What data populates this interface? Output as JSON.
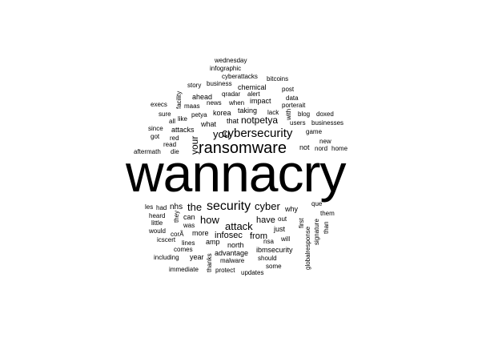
{
  "word_cloud": {
    "words": [
      {
        "id": "wannacry",
        "text": "wannacry"
      },
      {
        "id": "ransomware",
        "text": "ransomware"
      },
      {
        "id": "cybersecurity",
        "text": "cybersecurity"
      },
      {
        "id": "security",
        "text": "security"
      },
      {
        "id": "notpetya",
        "text": "notpetya"
      },
      {
        "id": "you",
        "text": "you"
      },
      {
        "id": "your",
        "text": "your"
      },
      {
        "id": "cyber",
        "text": "cyber"
      },
      {
        "id": "the",
        "text": "the"
      },
      {
        "id": "attack",
        "text": "attack"
      },
      {
        "id": "how",
        "text": "how"
      },
      {
        "id": "have",
        "text": "have"
      },
      {
        "id": "infosec",
        "text": "infosec"
      },
      {
        "id": "from",
        "text": "from"
      },
      {
        "id": "nhs",
        "text": "nhs"
      },
      {
        "id": "wednesday",
        "text": "wednesday"
      },
      {
        "id": "infographic",
        "text": "infographic"
      },
      {
        "id": "cyberattacks",
        "text": "cyberattacks"
      },
      {
        "id": "bitcoins",
        "text": "bitcoins"
      },
      {
        "id": "story",
        "text": "story"
      },
      {
        "id": "business",
        "text": "business"
      },
      {
        "id": "chemical",
        "text": "chemical"
      },
      {
        "id": "post",
        "text": "post"
      },
      {
        "id": "facility",
        "text": "facility"
      },
      {
        "id": "qradar",
        "text": "qradar"
      },
      {
        "id": "alert",
        "text": "alert"
      },
      {
        "id": "data",
        "text": "data"
      },
      {
        "id": "ahead",
        "text": "ahead"
      },
      {
        "id": "impact",
        "text": "impact"
      },
      {
        "id": "execs",
        "text": "execs"
      },
      {
        "id": "maas",
        "text": "maas"
      },
      {
        "id": "news",
        "text": "news"
      },
      {
        "id": "when",
        "text": "when"
      },
      {
        "id": "porterait",
        "text": "porterait"
      },
      {
        "id": "sure",
        "text": "sure"
      },
      {
        "id": "petya",
        "text": "petya"
      },
      {
        "id": "korea",
        "text": "korea"
      },
      {
        "id": "taking",
        "text": "taking"
      },
      {
        "id": "lack",
        "text": "lack"
      },
      {
        "id": "with",
        "text": "with"
      },
      {
        "id": "blog",
        "text": "blog"
      },
      {
        "id": "doxed",
        "text": "doxed"
      },
      {
        "id": "all",
        "text": "all"
      },
      {
        "id": "like",
        "text": "like"
      },
      {
        "id": "that",
        "text": "that"
      },
      {
        "id": "users",
        "text": "users"
      },
      {
        "id": "businesses",
        "text": "businesses"
      },
      {
        "id": "since",
        "text": "since"
      },
      {
        "id": "attacks",
        "text": "attacks"
      },
      {
        "id": "what",
        "text": "what"
      },
      {
        "id": "game",
        "text": "game"
      },
      {
        "id": "got",
        "text": "got"
      },
      {
        "id": "red",
        "text": "red"
      },
      {
        "id": "new",
        "text": "new"
      },
      {
        "id": "read",
        "text": "read"
      },
      {
        "id": "not",
        "text": "not"
      },
      {
        "id": "nord",
        "text": "nord"
      },
      {
        "id": "home",
        "text": "home"
      },
      {
        "id": "aftermath",
        "text": "aftermath"
      },
      {
        "id": "die",
        "text": "die"
      },
      {
        "id": "les",
        "text": "les"
      },
      {
        "id": "had",
        "text": "had"
      },
      {
        "id": "they",
        "text": "they"
      },
      {
        "id": "why",
        "text": "why"
      },
      {
        "id": "que",
        "text": "que"
      },
      {
        "id": "heard",
        "text": "heard"
      },
      {
        "id": "can",
        "text": "can"
      },
      {
        "id": "them",
        "text": "them"
      },
      {
        "id": "little",
        "text": "little"
      },
      {
        "id": "was",
        "text": "was"
      },
      {
        "id": "out",
        "text": "out"
      },
      {
        "id": "first",
        "text": "first"
      },
      {
        "id": "signature",
        "text": "signature"
      },
      {
        "id": "would",
        "text": "would"
      },
      {
        "id": "cora",
        "text": "corÃ"
      },
      {
        "id": "more",
        "text": "more"
      },
      {
        "id": "just",
        "text": "just"
      },
      {
        "id": "than",
        "text": "than"
      },
      {
        "id": "icscert",
        "text": "icscert"
      },
      {
        "id": "lines",
        "text": "lines"
      },
      {
        "id": "amp",
        "text": "amp"
      },
      {
        "id": "nsa",
        "text": "nsa"
      },
      {
        "id": "will",
        "text": "will"
      },
      {
        "id": "globalresponse",
        "text": "globalresponse"
      },
      {
        "id": "comes",
        "text": "comes"
      },
      {
        "id": "north",
        "text": "north"
      },
      {
        "id": "ibmsecurity",
        "text": "ibmsecurity"
      },
      {
        "id": "including",
        "text": "including"
      },
      {
        "id": "year",
        "text": "year"
      },
      {
        "id": "advantage",
        "text": "advantage"
      },
      {
        "id": "should",
        "text": "should"
      },
      {
        "id": "thanks",
        "text": "thanks"
      },
      {
        "id": "malware",
        "text": "malware"
      },
      {
        "id": "immediate",
        "text": "immediate"
      },
      {
        "id": "protect",
        "text": "protect"
      },
      {
        "id": "some",
        "text": "some"
      },
      {
        "id": "updates",
        "text": "updates"
      }
    ]
  }
}
